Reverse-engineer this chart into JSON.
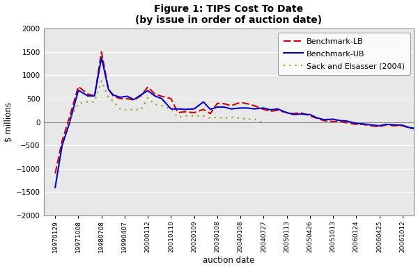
{
  "title_line1": "Figure 1: TIPS Cost To Date",
  "title_line2": "(by issue in order of auction date)",
  "xlabel": "auction date",
  "ylabel": "$ millions",
  "ylim": [
    -2000,
    2000
  ],
  "yticks": [
    -2000,
    -1500,
    -1000,
    -500,
    0,
    500,
    1000,
    1500,
    2000
  ],
  "x_tick_labels": [
    "19970129",
    "19971008",
    "19980708",
    "19990407",
    "20000112",
    "20010110",
    "20020109",
    "20030108",
    "20040108",
    "20040727",
    "20050113",
    "20050426",
    "20051013",
    "20060124",
    "20060425",
    "20061012"
  ],
  "lb_x": [
    0,
    0.3,
    0.6,
    1.0,
    1.4,
    1.7,
    2.0,
    2.3,
    2.5,
    2.8,
    3.1,
    3.4,
    3.7,
    4.0,
    4.3,
    4.6,
    5.0,
    5.3,
    5.6,
    6.0,
    6.4,
    6.7,
    7.0,
    7.3,
    7.6,
    8.0,
    8.3,
    8.6,
    9.0,
    9.3,
    9.6,
    10.0,
    10.3,
    10.6,
    11.0,
    11.3,
    11.6,
    12.0,
    12.3,
    12.6,
    13.0,
    13.3,
    13.6,
    14.0,
    14.3,
    14.6,
    15.0,
    15.3,
    15.6
  ],
  "lb_y": [
    -1100,
    -400,
    70,
    760,
    600,
    560,
    1500,
    700,
    560,
    500,
    500,
    470,
    560,
    750,
    600,
    550,
    500,
    200,
    220,
    200,
    270,
    180,
    400,
    390,
    350,
    420,
    390,
    350,
    270,
    230,
    250,
    200,
    180,
    200,
    130,
    80,
    30,
    10,
    20,
    -20,
    -50,
    -50,
    -80,
    -100,
    -60,
    -80,
    -80,
    -130,
    -150
  ],
  "ub_x": [
    0,
    0.3,
    0.6,
    1.0,
    1.4,
    1.7,
    2.0,
    2.3,
    2.5,
    2.8,
    3.1,
    3.4,
    3.7,
    4.0,
    4.3,
    4.6,
    5.0,
    5.3,
    5.6,
    6.0,
    6.4,
    6.7,
    7.0,
    7.3,
    7.6,
    8.0,
    8.3,
    8.6,
    9.0,
    9.3,
    9.6,
    10.0,
    10.3,
    10.6,
    11.0,
    11.3,
    11.6,
    12.0,
    12.3,
    12.6,
    13.0,
    13.3,
    13.6,
    14.0,
    14.3,
    14.6,
    15.0,
    15.3,
    15.6
  ],
  "ub_y": [
    -1400,
    -500,
    -50,
    680,
    560,
    560,
    1380,
    700,
    580,
    530,
    550,
    480,
    580,
    670,
    560,
    500,
    280,
    280,
    270,
    280,
    430,
    270,
    320,
    320,
    280,
    300,
    300,
    280,
    300,
    260,
    280,
    200,
    160,
    170,
    160,
    90,
    50,
    60,
    30,
    20,
    -30,
    -40,
    -60,
    -80,
    -50,
    -60,
    -70,
    -120,
    -140
  ],
  "sack_x": [
    0.6,
    1.0,
    1.4,
    1.7,
    2.0,
    2.3,
    2.5,
    2.8,
    3.1,
    3.4,
    3.7,
    4.0,
    4.3,
    4.6,
    5.0,
    5.3,
    5.6,
    6.0,
    6.4,
    6.7,
    7.0,
    7.3,
    7.6,
    8.0,
    8.3,
    8.6,
    9.0
  ],
  "sack_y": [
    0,
    400,
    430,
    430,
    880,
    520,
    450,
    280,
    260,
    270,
    260,
    520,
    380,
    350,
    280,
    100,
    130,
    130,
    130,
    80,
    100,
    80,
    100,
    80,
    60,
    60,
    -20
  ],
  "lb_color": "#cc0000",
  "ub_color": "#0000cc",
  "sack_color": "#999900",
  "plot_bg": "#e8e8e8",
  "fig_bg": "#ffffff",
  "grid_color": "#ffffff",
  "legend_order": [
    "lb",
    "ub",
    "sack"
  ]
}
